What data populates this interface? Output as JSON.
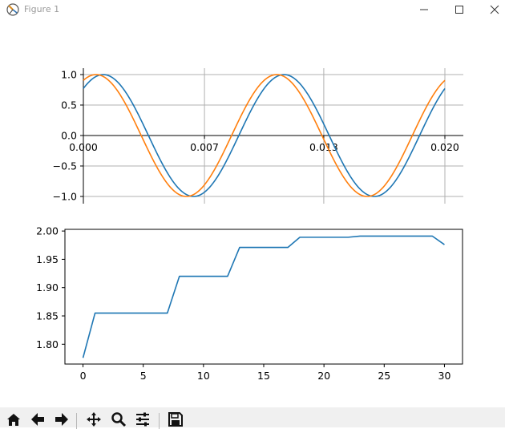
{
  "window": {
    "title": "Figure 1"
  },
  "toolbar": {
    "buttons": [
      "home-icon",
      "back-arrow-icon",
      "forward-arrow-icon",
      "pan-icon",
      "zoom-icon",
      "configure-subplots-icon",
      "save-icon"
    ]
  },
  "colors": {
    "series1": "#1f77b4",
    "series2": "#ff7f0e",
    "grid": "#b0b0b0"
  },
  "chart_data": [
    {
      "type": "line",
      "title": "",
      "xlabel": "",
      "ylabel": "",
      "xlim": [
        0.0,
        0.0205
      ],
      "ylim": [
        -1.05,
        1.05
      ],
      "x_ticks": [
        0.0,
        0.0067,
        0.0133,
        0.02
      ],
      "x_tick_labels": [
        "0.000",
        "0.007",
        "0.013",
        "0.020"
      ],
      "y_ticks": [
        1.0,
        0.5,
        0.0,
        -0.5,
        -1.0
      ],
      "y_tick_labels": [
        "1.0",
        "0.5",
        "0.0",
        "−0.5",
        "−1.0"
      ],
      "grid": true,
      "series": [
        {
          "function": "cos",
          "frequency_hz": 100,
          "phase_shift_s": 0.0011,
          "x_range": [
            0.0,
            0.02
          ]
        },
        {
          "function": "cos",
          "frequency_hz": 100,
          "phase_shift_s": 0.0007,
          "x_range": [
            0.0,
            0.02
          ]
        }
      ]
    },
    {
      "type": "line",
      "title": "",
      "xlabel": "",
      "ylabel": "",
      "xlim": [
        -1.5,
        31.5
      ],
      "ylim": [
        1.765,
        2.003
      ],
      "x_ticks": [
        0,
        5,
        10,
        15,
        20,
        25,
        30
      ],
      "x_tick_labels": [
        "0",
        "5",
        "10",
        "15",
        "20",
        "25",
        "30"
      ],
      "y_ticks": [
        2.0,
        1.95,
        1.9,
        1.85,
        1.8
      ],
      "y_tick_labels": [
        "2.00",
        "1.95",
        "1.90",
        "1.85",
        "1.80"
      ],
      "grid": false,
      "series": [
        {
          "x": [
            0,
            1,
            7,
            8,
            12,
            13,
            17,
            18,
            22,
            23,
            29,
            30
          ],
          "values": [
            1.776,
            1.855,
            1.855,
            1.92,
            1.92,
            1.971,
            1.971,
            1.989,
            1.989,
            1.991,
            1.991,
            1.976
          ]
        }
      ]
    }
  ]
}
